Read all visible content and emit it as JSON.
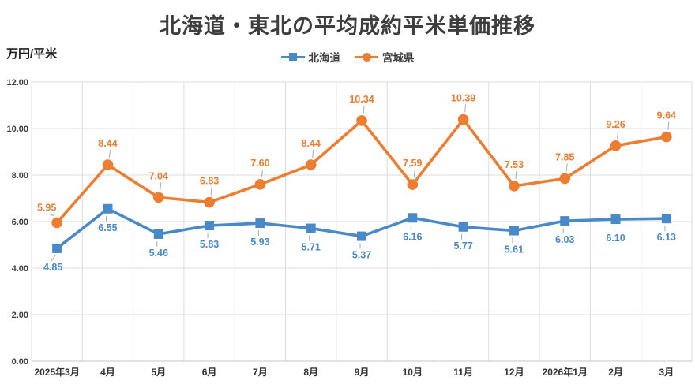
{
  "header": {
    "title": "北海道・東北の平均成約平米単価推移",
    "unit_label": "万円/平米"
  },
  "legend": {
    "items": [
      {
        "label": "北海道",
        "color": "#4a89c8",
        "marker": "square"
      },
      {
        "label": "宮城県",
        "color": "#ed7d31",
        "marker": "circle"
      }
    ]
  },
  "chart_data": {
    "type": "line",
    "title": "北海道・東北の平均成約平米単価推移",
    "ylabel": "万円/平米",
    "xlabel": "",
    "categories": [
      "2025年3月",
      "4月",
      "5月",
      "6月",
      "7月",
      "8月",
      "9月",
      "10月",
      "11月",
      "12月",
      "2026年1月",
      "2月",
      "3月"
    ],
    "series": [
      {
        "name": "北海道",
        "color": "#4a89c8",
        "marker": "square",
        "data_label_position": "below",
        "values": [
          4.85,
          6.55,
          5.46,
          5.83,
          5.93,
          5.71,
          5.37,
          6.16,
          5.77,
          5.61,
          6.03,
          6.1,
          6.13
        ]
      },
      {
        "name": "宮城県",
        "color": "#ed7d31",
        "marker": "circle",
        "data_label_position": "above",
        "values": [
          5.95,
          8.44,
          7.04,
          6.83,
          7.6,
          8.44,
          10.34,
          7.59,
          10.39,
          7.53,
          7.85,
          9.26,
          9.64
        ]
      }
    ],
    "ylim": [
      0,
      12
    ],
    "ytick_step": 2,
    "yticks": [
      "0.00",
      "2.00",
      "4.00",
      "6.00",
      "8.00",
      "10.00",
      "12.00"
    ],
    "grid": true,
    "legend_position": "top",
    "value_decimals": 2,
    "colors": {
      "gridline": "#dcdcdc",
      "axis_line": "#c6c6c6",
      "leader_line": "#ababab",
      "ytick_text": "#404040",
      "xtick_text": "#333333"
    }
  }
}
